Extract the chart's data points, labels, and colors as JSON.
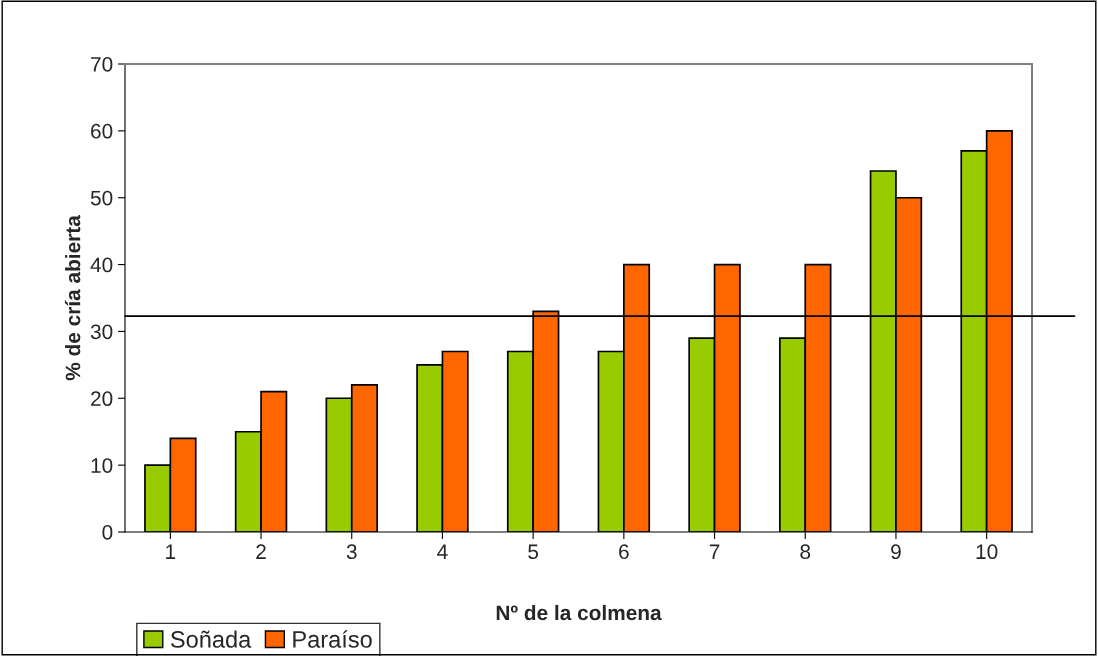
{
  "chart_data": {
    "type": "bar",
    "xlabel": "Nº de la colmena",
    "ylabel": "% de cría abierta",
    "categories": [
      "1",
      "2",
      "3",
      "4",
      "5",
      "6",
      "7",
      "8",
      "9",
      "10"
    ],
    "series": [
      {
        "name": "Soñada",
        "color": "#99cc00",
        "values": [
          10,
          15,
          20,
          25,
          27,
          27,
          29,
          29,
          54,
          57
        ]
      },
      {
        "name": "Paraíso",
        "color": "#ff6600",
        "values": [
          14,
          21,
          22,
          27,
          33,
          40,
          40,
          40,
          50,
          60
        ]
      }
    ],
    "ylim": [
      0,
      70
    ],
    "yticks": [
      0,
      10,
      20,
      30,
      40,
      50,
      60,
      70
    ],
    "grid": false,
    "legend": "bottom left",
    "ref_lines": [
      {
        "axis": "y",
        "value": 32.3,
        "color": "#000000",
        "line_style": "solid"
      }
    ]
  }
}
